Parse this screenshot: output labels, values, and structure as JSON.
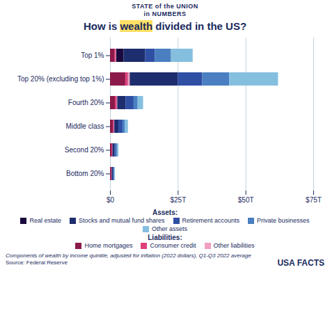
{
  "chart_data": {
    "type": "bar",
    "orientation": "horizontal",
    "stacked": true,
    "header": [
      "STATE of the UNION",
      "in NUMBERS"
    ],
    "title": "How is wealth divided in the US?",
    "title_highlight": "wealth",
    "categories": [
      "Top 1%",
      "Top 20% (excluding top 1%)",
      "Fourth 20%",
      "Middle class",
      "Second 20%",
      "Bottom 20%"
    ],
    "groups": [
      {
        "name": "Assets:",
        "series": [
          {
            "name": "Real estate",
            "color": "#1a0a3d",
            "values": [
              5.0,
              7.0,
              2.2,
              1.3,
              0.7,
              0.5
            ]
          },
          {
            "name": "Stocks and mutual fund shares",
            "color": "#1e2d6e",
            "values": [
              8.0,
              18.0,
              3.5,
              1.8,
              0.9,
              0.5
            ]
          },
          {
            "name": "Retirement accounts",
            "color": "#2e4fa3",
            "values": [
              3.5,
              9.0,
              3.0,
              1.5,
              0.6,
              0.3
            ]
          },
          {
            "name": "Private businesses",
            "color": "#4a7fc1",
            "values": [
              6.0,
              10.0,
              1.5,
              0.8,
              0.4,
              0.2
            ]
          },
          {
            "name": "Other assets",
            "color": "#85bfe0",
            "values": [
              8.0,
              18.0,
              2.0,
              1.2,
              0.5,
              0.3
            ]
          }
        ]
      },
      {
        "name": "Liabilities:",
        "series": [
          {
            "name": "Home mortgages",
            "color": "#8b1a4a",
            "values": [
              1.5,
              5.5,
              1.8,
              1.0,
              0.5,
              0.3
            ]
          },
          {
            "name": "Consumer credit",
            "color": "#e0407a",
            "values": [
              0.5,
              1.0,
              0.6,
              0.4,
              0.3,
              0.2
            ]
          },
          {
            "name": "Other liabilities",
            "color": "#f0a0c0",
            "values": [
              0.3,
              0.8,
              0.3,
              0.2,
              0.1,
              0.1
            ]
          }
        ]
      }
    ],
    "xlim": [
      0,
      75
    ],
    "xticks": [
      {
        "value": 0,
        "label": "$0"
      },
      {
        "value": 25,
        "label": "$25T"
      },
      {
        "value": 50,
        "label": "$50T"
      },
      {
        "value": 75,
        "label": "$75T"
      }
    ],
    "grid": true,
    "legend": "bottom",
    "footnote": "Components of wealth by income quintile, adjusted for inflation (2022 dollars), Q1-Q3 2022 average",
    "source": "Source: Federal Reserve",
    "logo": "USA FACTS"
  }
}
